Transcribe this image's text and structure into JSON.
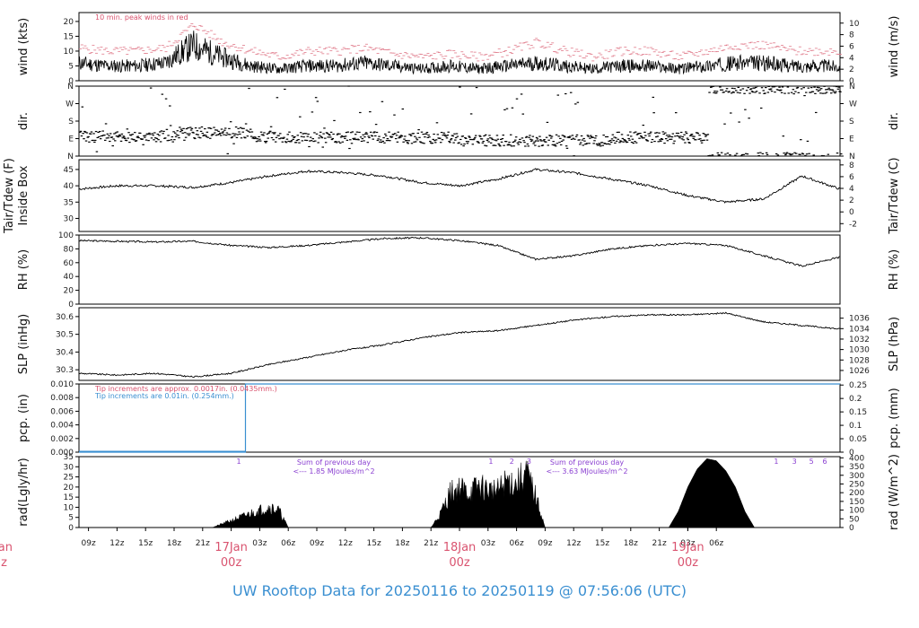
{
  "title": "UW Rooftop Data for 20250116  to  20250119 @ 07:56:06  (UTC)",
  "colors": {
    "accent_blue": "#3a8fd1",
    "accent_red": "#d9536f",
    "accent_purple": "#8a3fd1",
    "trace": "#000000"
  },
  "chart_data": [
    {
      "id": "wind",
      "type": "line",
      "ylabel": "wind (kts)",
      "ylabel_right": "wind (m/s)",
      "ylim": [
        0,
        23
      ],
      "yticks": [
        0,
        5,
        10,
        15,
        20
      ],
      "ylim_right": [
        0,
        11.83
      ],
      "yticks_right": [
        0,
        2,
        4,
        6,
        8,
        10
      ],
      "annotation": "10 min. peak winds in red",
      "series": [
        {
          "role": "mean",
          "x_hours": [
            0,
            3,
            6,
            9,
            12,
            15,
            18,
            21,
            24,
            27,
            30,
            33,
            36,
            39,
            42,
            45,
            48,
            51,
            54,
            57,
            60,
            63,
            66,
            69,
            72,
            75,
            78,
            80
          ],
          "values": [
            6,
            5,
            5,
            6,
            12,
            8,
            5,
            4,
            5,
            5,
            6,
            5,
            4,
            5,
            4,
            5,
            6,
            5,
            4,
            5,
            5,
            4,
            5,
            6,
            6,
            5,
            5,
            5
          ]
        },
        {
          "role": "peak",
          "x_hours": [
            0,
            3,
            6,
            9,
            12,
            15,
            18,
            21,
            24,
            27,
            30,
            33,
            36,
            39,
            42,
            45,
            48,
            51,
            54,
            57,
            60,
            63,
            66,
            69,
            72,
            75,
            78,
            80
          ],
          "values": [
            11,
            10,
            10,
            11,
            19,
            13,
            10,
            8,
            10,
            10,
            11,
            9,
            8,
            9,
            8,
            10,
            13,
            10,
            8,
            10,
            10,
            8,
            10,
            12,
            12,
            10,
            10,
            10
          ]
        }
      ]
    },
    {
      "id": "dir",
      "type": "scatter",
      "ylabel": "dir.",
      "ylabel_right": "dir.",
      "ycats": [
        "N",
        "E",
        "S",
        "W",
        "N"
      ]
    },
    {
      "id": "temp",
      "type": "line",
      "ylabel": "Tair/Tdew (F)",
      "ylabel2": "Inside Box",
      "ylabel_right": "Tair/Tdew (C)",
      "ylim": [
        26,
        48
      ],
      "yticks": [
        30,
        35,
        40,
        45
      ],
      "ylim_right": [
        -3.33,
        8.89
      ],
      "yticks_right": [
        -2,
        0,
        2,
        4,
        6,
        8
      ],
      "series": [
        {
          "x_hours": [
            0,
            4,
            8,
            12,
            16,
            20,
            24,
            28,
            32,
            36,
            40,
            44,
            48,
            52,
            56,
            60,
            64,
            68,
            72,
            76,
            80
          ],
          "values": [
            39,
            40,
            40,
            39.5,
            41,
            43,
            44.5,
            44,
            43,
            41,
            40,
            42,
            45,
            44,
            42,
            40,
            37,
            35,
            36,
            43,
            39
          ]
        }
      ]
    },
    {
      "id": "rh",
      "type": "line",
      "ylabel": "RH (%)",
      "ylabel_right": "RH (%)",
      "ylim": [
        0,
        100
      ],
      "yticks": [
        0,
        20,
        40,
        60,
        80,
        100
      ],
      "series": [
        {
          "x_hours": [
            0,
            4,
            8,
            12,
            16,
            20,
            24,
            28,
            32,
            36,
            40,
            44,
            48,
            52,
            56,
            60,
            64,
            68,
            72,
            76,
            80
          ],
          "values": [
            92,
            91,
            90,
            91,
            85,
            82,
            85,
            90,
            95,
            96,
            92,
            85,
            65,
            70,
            80,
            85,
            88,
            85,
            70,
            55,
            68
          ]
        }
      ]
    },
    {
      "id": "slp",
      "type": "line",
      "ylabel": "SLP (inHg)",
      "ylabel_right": "SLP (hPa)",
      "ylim": [
        30.24,
        30.65
      ],
      "yticks": [
        30.3,
        30.4,
        30.5,
        30.6
      ],
      "ylim_right": [
        1024.1,
        1038.0
      ],
      "yticks_right": [
        1026,
        1028,
        1030,
        1032,
        1034,
        1036
      ],
      "series": [
        {
          "x_hours": [
            0,
            4,
            8,
            12,
            16,
            20,
            24,
            28,
            32,
            36,
            40,
            44,
            48,
            52,
            56,
            60,
            64,
            68,
            72,
            76,
            80
          ],
          "values": [
            30.28,
            30.27,
            30.28,
            30.26,
            30.28,
            30.33,
            30.37,
            30.41,
            30.44,
            30.48,
            30.51,
            30.52,
            30.55,
            30.58,
            30.6,
            30.61,
            30.61,
            30.62,
            30.57,
            30.55,
            30.53
          ]
        }
      ]
    },
    {
      "id": "pcp",
      "type": "area",
      "ylabel": "pcp. (in)",
      "ylabel_right": "pcp. (mm)",
      "ylim": [
        0,
        0.01
      ],
      "yticks": [
        0.0,
        0.002,
        0.004,
        0.006,
        0.008,
        0.01
      ],
      "ylim_right": [
        0,
        0.254
      ],
      "yticks_right": [
        0,
        0.05,
        0.1,
        0.15,
        0.2,
        0.25
      ],
      "annotations": [
        "Tip increments are approx. 0.0017in. (0.0435mm.)",
        "Tip increments are 0.01in. (0.254mm.)"
      ],
      "series": [
        {
          "x_hours": [
            0,
            17.5,
            17.5,
            80
          ],
          "values": [
            0,
            0,
            0.01,
            0.01
          ]
        }
      ]
    },
    {
      "id": "rad",
      "type": "area",
      "ylabel": "rad(Lgly/hr)",
      "ylabel_right": "rad (W/m^2)",
      "ylim": [
        0,
        35
      ],
      "yticks": [
        0,
        5,
        10,
        15,
        20,
        25,
        30,
        35
      ],
      "ylim_right": [
        0,
        406.9
      ],
      "yticks_right": [
        0,
        50,
        100,
        150,
        200,
        250,
        300,
        350,
        400
      ],
      "sums": [
        {
          "label": "Sum of previous day",
          "value": "<--- 1.85 MJoules/m^2"
        },
        {
          "label": "Sum of previous day",
          "value": "<--- 3.63 MJoules/m^2"
        }
      ],
      "markers": [
        {
          "label": "1",
          "x_hour": 16.8
        },
        {
          "label": "1",
          "x_hour": 43.3
        },
        {
          "label": "2",
          "x_hour": 45.5
        },
        {
          "label": "3",
          "x_hour": 47.3
        },
        {
          "label": "1",
          "x_hour": 73.3
        },
        {
          "label": "3",
          "x_hour": 75.2
        },
        {
          "label": "5",
          "x_hour": 77.0
        },
        {
          "label": "6",
          "x_hour": 78.4
        }
      ],
      "series": [
        {
          "x_hours": [
            14,
            15,
            16,
            17,
            18,
            19,
            20,
            21,
            22,
            37,
            38,
            39,
            40,
            41,
            42,
            43,
            44,
            45,
            46,
            47,
            48,
            49,
            62,
            63,
            64,
            65,
            66,
            67,
            68,
            69,
            70,
            71
          ],
          "values": [
            0,
            2,
            4,
            6,
            8,
            10,
            12,
            10,
            0,
            0,
            8,
            20,
            23,
            20,
            24,
            22,
            21,
            27,
            25,
            32,
            18,
            0,
            0,
            8,
            20,
            29,
            34,
            33,
            28,
            20,
            8,
            0
          ]
        }
      ]
    }
  ],
  "x_axis": {
    "start_hour": 8,
    "span_hours": 80,
    "tick_labels": [
      "09z",
      "12z",
      "15z",
      "18z",
      "21z",
      "03z",
      "06z",
      "09z",
      "12z",
      "15z",
      "18z",
      "21z",
      "03z",
      "06z",
      "09z",
      "12z",
      "15z",
      "18z",
      "21z",
      "03z",
      "06z"
    ],
    "day_labels": [
      {
        "date": "17Jan",
        "time": "00z"
      },
      {
        "date": "18Jan",
        "time": "00z"
      },
      {
        "date": "19Jan",
        "time": "00z"
      }
    ],
    "clipped_left": {
      "date": "Jan",
      "time": "z"
    }
  }
}
